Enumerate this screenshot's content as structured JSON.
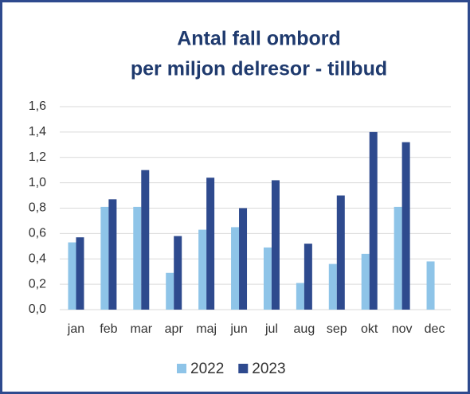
{
  "chart_data": {
    "type": "bar",
    "title": [
      "Antal fall ombord",
      "per miljon delresor - tillbud"
    ],
    "categories": [
      "jan",
      "feb",
      "mar",
      "apr",
      "maj",
      "jun",
      "jul",
      "aug",
      "sep",
      "okt",
      "nov",
      "dec"
    ],
    "series": [
      {
        "name": "2022",
        "color": "#8ec4e8",
        "values": [
          0.53,
          0.81,
          0.81,
          0.29,
          0.63,
          0.65,
          0.49,
          0.21,
          0.36,
          0.44,
          0.81,
          0.38
        ]
      },
      {
        "name": "2023",
        "color": "#2e4a8e",
        "values": [
          0.57,
          0.87,
          1.1,
          0.58,
          1.04,
          0.8,
          1.02,
          0.52,
          0.9,
          1.4,
          1.32,
          null
        ]
      }
    ],
    "ylim": [
      0,
      1.6
    ],
    "yticks": [
      {
        "value": 0,
        "label": "0,0"
      },
      {
        "value": 0.2,
        "label": "0,2"
      },
      {
        "value": 0.4,
        "label": "0,4"
      },
      {
        "value": 0.6,
        "label": "0,6"
      },
      {
        "value": 0.8,
        "label": "0,8"
      },
      {
        "value": 1.0,
        "label": "1,0"
      },
      {
        "value": 1.2,
        "label": "1,2"
      },
      {
        "value": 1.4,
        "label": "1,4"
      },
      {
        "value": 1.6,
        "label": "1,6"
      }
    ],
    "grid": true,
    "legend": "bottom"
  }
}
